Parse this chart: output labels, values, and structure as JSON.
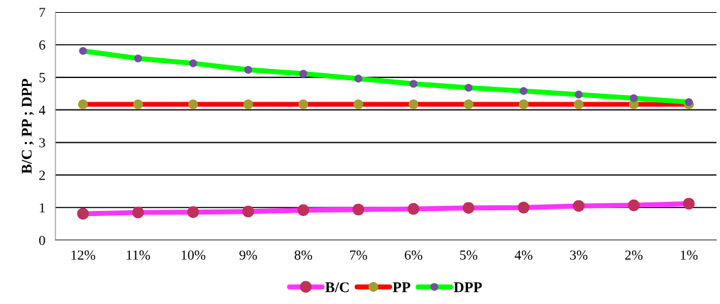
{
  "chart_data": {
    "type": "line",
    "ylabel": "B/C ; PP ; DPP",
    "categories": [
      "12%",
      "11%",
      "10%",
      "9%",
      "8%",
      "7%",
      "6%",
      "5%",
      "4%",
      "3%",
      "2%",
      "1%"
    ],
    "series": [
      {
        "name": "B/C",
        "color": "#ff33ff",
        "values": [
          0.81,
          0.85,
          0.86,
          0.88,
          0.92,
          0.94,
          0.96,
          0.99,
          1.0,
          1.05,
          1.07,
          1.12
        ]
      },
      {
        "name": "PP",
        "color": "#ff0000",
        "values": [
          4.17,
          4.17,
          4.17,
          4.17,
          4.17,
          4.17,
          4.17,
          4.17,
          4.17,
          4.17,
          4.17,
          4.17
        ]
      },
      {
        "name": "DPP",
        "color": "#00ff00",
        "values": [
          5.81,
          5.58,
          5.43,
          5.23,
          5.11,
          4.96,
          4.8,
          4.68,
          4.58,
          4.47,
          4.36,
          4.24
        ]
      }
    ],
    "ylim": [
      0,
      7
    ],
    "yticks": [
      0,
      1,
      2,
      3,
      4,
      5,
      6,
      7
    ],
    "grid": "y",
    "legend": "bottom",
    "marker": "circle",
    "line_style": "solid"
  }
}
